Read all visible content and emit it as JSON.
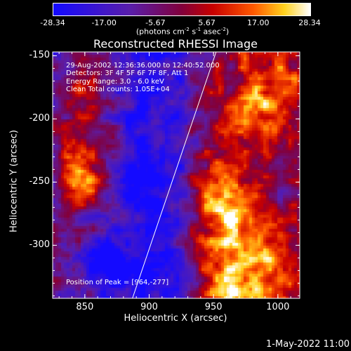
{
  "colorbar": {
    "ticks": [
      "-28.34",
      "-17.00",
      "-5.67",
      "5.67",
      "17.00",
      "28.34"
    ],
    "units_prefix": "(photons cm",
    "units_exp1": "-2",
    "units_mid": " s",
    "units_exp2": "-1",
    "units_mid2": " asec",
    "units_exp3": "-2",
    "units_suffix": ")"
  },
  "chart_data": {
    "type": "heatmap",
    "title": "Reconstructed RHESSI Image",
    "xlabel": "Heliocentric X (arcsec)",
    "ylabel": "Heliocentric Y (arcsec)",
    "xlim": [
      825,
      1017
    ],
    "ylim": [
      -342,
      -147
    ],
    "xticks": [
      "850",
      "900",
      "950",
      "1000"
    ],
    "yticks": [
      "-150",
      "-200",
      "-250",
      "-300"
    ],
    "color_range": [
      -28.34,
      28.34
    ],
    "peak": [
      964,
      -277
    ],
    "limb_line": [
      [
        887,
        -342
      ],
      [
        952,
        -147
      ]
    ]
  },
  "info": {
    "time": "29-Aug-2002 12:36:36.000 to 12:40:52.000",
    "detectors": "Detectors: 3F 4F 5F 6F 7F 8F, Att 1",
    "energy": "Energy Range: 3.0 - 6.0 keV",
    "clean": "Clean     Total counts: 1.05E+04",
    "peak": "Position of Peak = [964,-277]"
  },
  "footer": {
    "date": "1-May-2022 11:00"
  }
}
